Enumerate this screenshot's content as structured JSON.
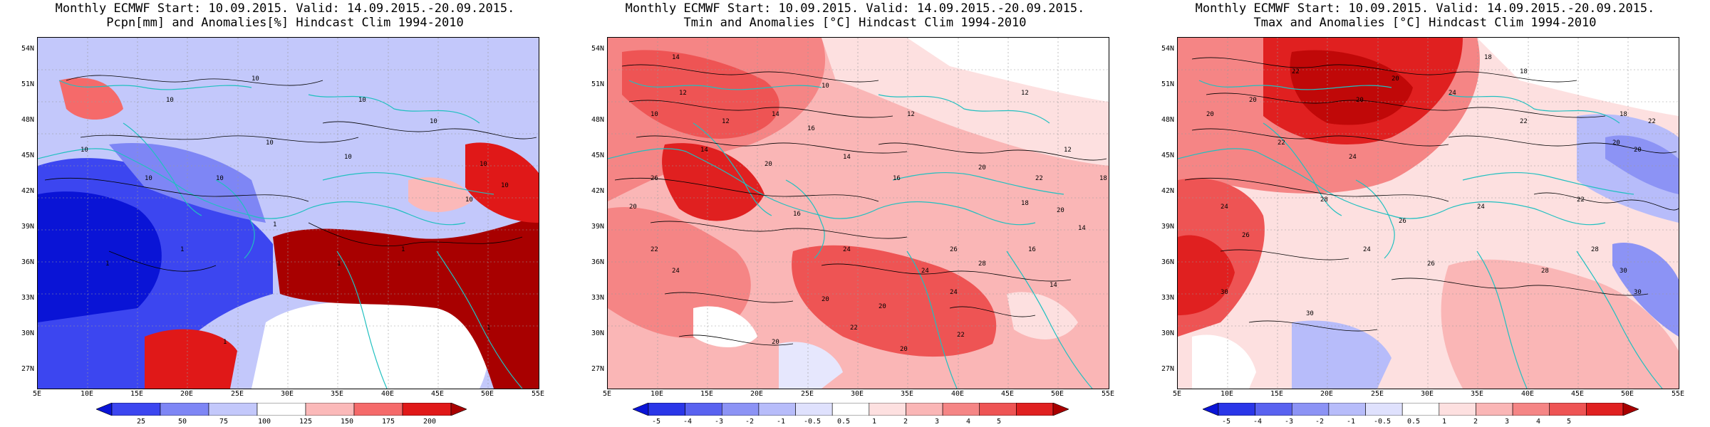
{
  "panels": [
    {
      "id": "precip",
      "title_line1": "Monthly ECMWF Start: 10.09.2015. Valid: 14.09.2015.-20.09.2015.",
      "title_line2": "Pcpn[mm] and Anomalies[%] Hindcast Clim 1994-2010",
      "lat_labels": [
        "54N",
        "51N",
        "48N",
        "45N",
        "42N",
        "39N",
        "36N",
        "33N",
        "30N",
        "27N"
      ],
      "lon_labels": [
        "5E",
        "10E",
        "15E",
        "20E",
        "25E",
        "30E",
        "35E",
        "40E",
        "45E",
        "50E",
        "55E"
      ],
      "colorbar_labels": [
        "25",
        "50",
        "75",
        "100",
        "125",
        "150",
        "175",
        "200"
      ],
      "colorbar_colors": [
        "#0a14d6",
        "#3c46f0",
        "#7e86f5",
        "#c3c8fb",
        "#ffffff",
        "#fbb9b9",
        "#f56a6a",
        "#e01818",
        "#a80000"
      ],
      "contour_labels": [
        "10",
        "10",
        "10",
        "10",
        "10",
        "10",
        "10",
        "10",
        "10",
        "10",
        "10",
        "10",
        "1",
        "1",
        "1",
        "1",
        "1",
        "1",
        "1"
      ]
    },
    {
      "id": "tmin",
      "title_line1": "Monthly ECMWF Start: 10.09.2015. Valid: 14.09.2015.-20.09.2015.",
      "title_line2": "Tmin and Anomalies [°C] Hindcast Clim 1994-2010",
      "lat_labels": [
        "54N",
        "51N",
        "48N",
        "45N",
        "42N",
        "39N",
        "36N",
        "33N",
        "30N",
        "27N"
      ],
      "lon_labels": [
        "5E",
        "10E",
        "15E",
        "20E",
        "25E",
        "30E",
        "35E",
        "40E",
        "45E",
        "50E",
        "55E"
      ],
      "colorbar_labels": [
        "-5",
        "-4",
        "-3",
        "-2",
        "-1",
        "-0.5",
        "0.5",
        "1",
        "2",
        "3",
        "4",
        "5"
      ],
      "colorbar_colors": [
        "#0a14d6",
        "#2a36e8",
        "#5962f0",
        "#8c93f5",
        "#b7bcfa",
        "#dfe1fd",
        "#ffffff",
        "#fde0e0",
        "#fab6b6",
        "#f58585",
        "#ee5454",
        "#e02020",
        "#a80000"
      ],
      "contour_labels": [
        "14",
        "12",
        "10",
        "10",
        "12",
        "12",
        "14",
        "16",
        "14",
        "20",
        "14",
        "16",
        "20",
        "22",
        "18",
        "20",
        "14",
        "12",
        "16",
        "20",
        "22",
        "24",
        "26",
        "24",
        "20",
        "22",
        "20",
        "24",
        "26",
        "28",
        "24",
        "22",
        "20",
        "16",
        "14",
        "12",
        "18",
        "20"
      ]
    },
    {
      "id": "tmax",
      "title_line1": "Monthly ECMWF Start: 10.09.2015. Valid: 14.09.2015.-20.09.2015.",
      "title_line2": "Tmax and Anomalies [°C] Hindcast Clim 1994-2010",
      "lat_labels": [
        "54N",
        "51N",
        "48N",
        "45N",
        "42N",
        "39N",
        "36N",
        "33N",
        "30N",
        "27N"
      ],
      "lon_labels": [
        "5E",
        "10E",
        "15E",
        "20E",
        "25E",
        "30E",
        "35E",
        "40E",
        "45E",
        "50E",
        "55E"
      ],
      "colorbar_labels": [
        "-5",
        "-4",
        "-3",
        "-2",
        "-1",
        "-0.5",
        "0.5",
        "1",
        "2",
        "3",
        "4",
        "5"
      ],
      "colorbar_colors": [
        "#0a14d6",
        "#2a36e8",
        "#5962f0",
        "#8c93f5",
        "#b7bcfa",
        "#dfe1fd",
        "#ffffff",
        "#fde0e0",
        "#fab6b6",
        "#f58585",
        "#ee5454",
        "#e02020",
        "#a80000"
      ],
      "contour_labels": [
        "18",
        "20",
        "18",
        "22",
        "22",
        "20",
        "24",
        "20",
        "22",
        "24",
        "20",
        "24",
        "26",
        "28",
        "30",
        "30",
        "26",
        "24",
        "22",
        "20",
        "18",
        "28",
        "30",
        "30",
        "28",
        "26",
        "24",
        "22",
        "20"
      ]
    }
  ]
}
